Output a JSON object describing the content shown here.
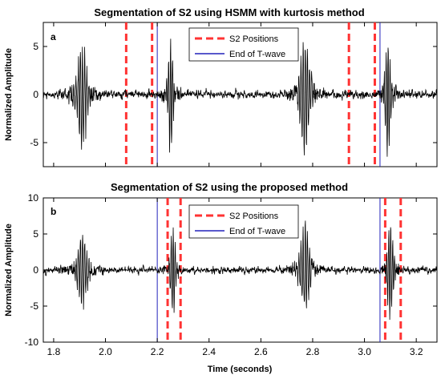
{
  "chart_data": [
    {
      "type": "line",
      "panel_label": "a",
      "title": "Segmentation of S2 using HSMM with kurtosis method",
      "ylabel": "Normalized Amplitude",
      "xlabel": "",
      "xlim": [
        1.76,
        3.28
      ],
      "ylim": [
        -7.5,
        7.5
      ],
      "yticks": [
        -5,
        0,
        5
      ],
      "grid": false,
      "legend_position": "top-center",
      "series": [
        {
          "name": "S2 Positions",
          "color": "#ff3333",
          "style": "dashed",
          "x": [
            2.08,
            2.18,
            2.94,
            3.04
          ]
        },
        {
          "name": "End of T-wave",
          "color": "#2222bb",
          "style": "solid",
          "x": [
            2.2,
            3.06
          ]
        }
      ],
      "signal": {
        "color": "#000000",
        "bursts": [
          {
            "t": 1.91,
            "amp": 5.0,
            "width": 0.022,
            "freq": 55
          },
          {
            "t": 2.25,
            "amp": 5.6,
            "width": 0.012,
            "freq": 60
          },
          {
            "t": 2.77,
            "amp": 5.6,
            "width": 0.022,
            "freq": 55
          },
          {
            "t": 3.09,
            "amp": 5.8,
            "width": 0.013,
            "freq": 60
          }
        ],
        "noise": 0.8,
        "seed": 7
      }
    },
    {
      "type": "line",
      "panel_label": "b",
      "title": "Segmentation of S2 using the proposed method",
      "ylabel": "Normalized Amplitude",
      "xlabel": "Time (seconds)",
      "xlim": [
        1.76,
        3.28
      ],
      "ylim": [
        -10,
        10
      ],
      "yticks": [
        -10,
        -5,
        0,
        5,
        10
      ],
      "xticks": [
        1.8,
        2.0,
        2.2,
        2.4,
        2.6,
        2.8,
        3.0,
        3.2
      ],
      "grid": false,
      "legend_position": "top-center",
      "series": [
        {
          "name": "S2 Positions",
          "color": "#ff3333",
          "style": "dashed",
          "x": [
            2.24,
            2.29,
            3.08,
            3.14
          ]
        },
        {
          "name": "End of T-wave",
          "color": "#2222bb",
          "style": "solid",
          "x": [
            2.2,
            3.06
          ]
        }
      ],
      "signal": {
        "color": "#000000",
        "bursts": [
          {
            "t": 1.91,
            "amp": 5.0,
            "width": 0.022,
            "freq": 55
          },
          {
            "t": 2.26,
            "amp": 6.2,
            "width": 0.012,
            "freq": 60
          },
          {
            "t": 2.77,
            "amp": 6.0,
            "width": 0.022,
            "freq": 55
          },
          {
            "t": 3.1,
            "amp": 6.0,
            "width": 0.013,
            "freq": 60
          }
        ],
        "noise": 0.9,
        "seed": 11
      }
    }
  ]
}
